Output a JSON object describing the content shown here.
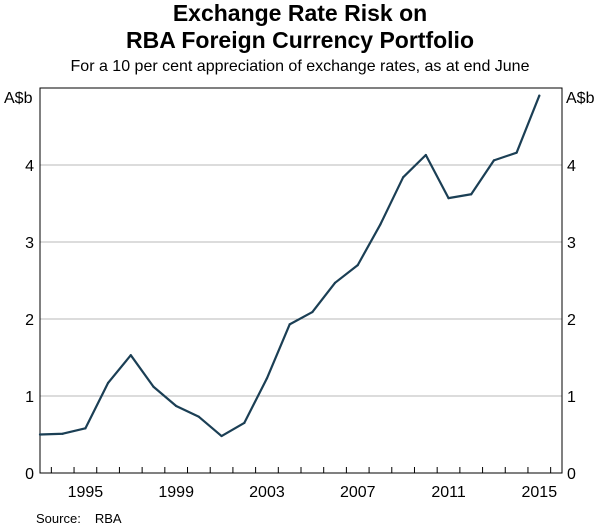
{
  "chart_data": {
    "type": "line",
    "title": "Exchange Rate Risk on",
    "title_line2": "RBA Foreign Currency Portfolio",
    "subtitle": "For a 10 per cent appreciation of exchange rates, as at end June",
    "ylabel_left": "A$b",
    "ylabel_right": "A$b",
    "xlim": [
      1993,
      2016
    ],
    "ylim": [
      0,
      5
    ],
    "yticks": [
      0,
      1,
      2,
      3,
      4
    ],
    "xticks": [
      1995,
      1999,
      2003,
      2007,
      2011,
      2015
    ],
    "x": [
      1993,
      1994,
      1995,
      1996,
      1997,
      1998,
      1999,
      2000,
      2001,
      2002,
      2003,
      2004,
      2005,
      2006,
      2007,
      2008,
      2009,
      2010,
      2011,
      2012,
      2013,
      2014,
      2015
    ],
    "series": [
      {
        "name": "Exchange rate risk",
        "color": "#1b3f55",
        "values": [
          0.5,
          0.51,
          0.58,
          1.17,
          1.53,
          1.12,
          0.87,
          0.73,
          0.48,
          0.65,
          1.23,
          1.93,
          2.09,
          2.47,
          2.7,
          3.23,
          3.84,
          4.13,
          3.57,
          3.62,
          4.06,
          4.16,
          4.9
        ]
      }
    ]
  },
  "source": {
    "label": "Source:",
    "value": "RBA"
  }
}
